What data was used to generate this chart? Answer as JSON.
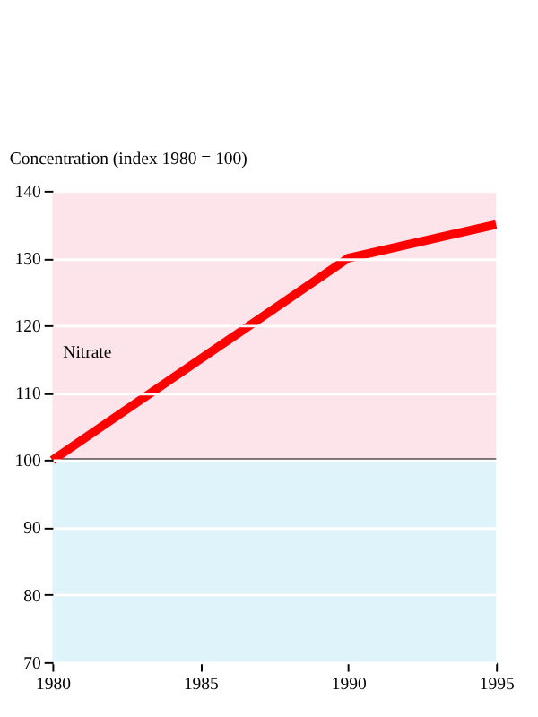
{
  "chart_data": {
    "type": "line",
    "ylabel": "Concentration (index 1980 = 100)",
    "x": [
      1980,
      1990,
      1995
    ],
    "series": [
      {
        "name": "Nitrate",
        "color": "#ff0000",
        "values": [
          100,
          130,
          135
        ]
      }
    ],
    "xlim": [
      1980,
      1995
    ],
    "xticks": [
      1980,
      1985,
      1990,
      1995
    ],
    "ylim": [
      70,
      140
    ],
    "yticks": [
      70,
      80,
      90,
      100,
      110,
      120,
      130,
      140
    ],
    "grid": "y",
    "legend": false,
    "marker": "none",
    "line_style": "solid",
    "ref_lines": [
      {
        "axis": "y",
        "value": 100,
        "color": "#000000"
      }
    ],
    "bands": [
      {
        "axis": "y",
        "from": 100,
        "to": 140,
        "color": "#fde3ea"
      },
      {
        "axis": "y",
        "from": 70,
        "to": 100,
        "color": "#dff3fb"
      }
    ]
  }
}
